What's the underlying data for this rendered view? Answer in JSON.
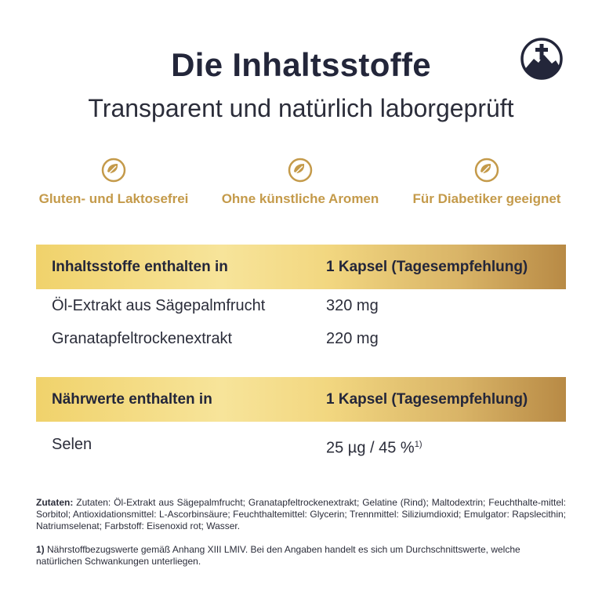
{
  "header": {
    "title": "Die Inhaltsstoffe",
    "subtitle": "Transparent und natürlich laborgeprüft"
  },
  "brand": {
    "icon": "mountain-cross-icon",
    "color": "#23263a"
  },
  "features": [
    {
      "icon": "leaf-check-icon",
      "label": "Gluten- und Laktosefrei"
    },
    {
      "icon": "leaf-check-icon",
      "label": "Ohne künstliche Aromen"
    },
    {
      "icon": "leaf-check-icon",
      "label": "Für Diabetiker geeignet"
    }
  ],
  "ingredients_table": {
    "header": {
      "col1": "Inhaltsstoffe enthalten in",
      "col2": "1 Kapsel (Tagesempfehlung)"
    },
    "rows": [
      {
        "name": "Öl-Extrakt aus Sägepalmfrucht",
        "amount": "320 mg"
      },
      {
        "name": "Granatapfeltrockenextrakt",
        "amount": "220 mg"
      }
    ]
  },
  "nutrition_table": {
    "header": {
      "col1": "Nährwerte enthalten in",
      "col2": "1 Kapsel (Tagesempfehlung)"
    },
    "rows": [
      {
        "name": "Selen",
        "amount": "25 µg / 45 %",
        "footnote_ref": "1)"
      }
    ]
  },
  "ingredients_text": {
    "label": "Zutaten:",
    "text": "Zutaten: Öl-Extrakt aus Sägepalmfrucht; Granatapfeltrockenextrakt; Gelatine (Rind); Maltodextrin; Feuchthalte-mittel: Sorbitol; Antioxidationsmittel: L-Ascorbinsäure; Feuchthaltemittel: Glycerin; Trennmittel: Siliziumdioxid; Emulgator: Rapslecithin; Natriumselenat; Farbstoff: Eisenoxid rot; Wasser."
  },
  "footnote": {
    "marker": "1)",
    "text": "Nährstoffbezugswerte gemäß Anhang XIII LMIV. Bei den Angaben handelt es sich um Durchschnittswerte, welche natürlichen Schwankungen unterliegen."
  },
  "colors": {
    "accent_gold": "#c49a4a",
    "header_gold_light": "#f7e49a",
    "header_gold_dark": "#b88a45",
    "text_dark": "#23263a"
  }
}
